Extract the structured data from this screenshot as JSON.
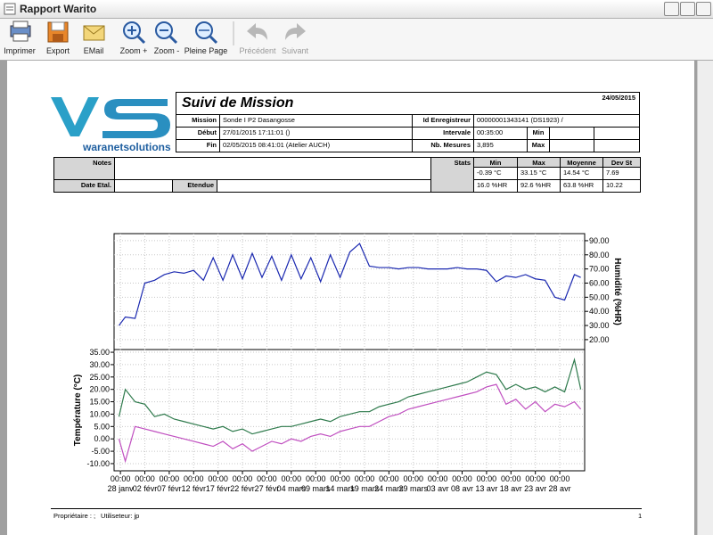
{
  "window": {
    "title": "Rapport Warito"
  },
  "toolbar": {
    "buttons": [
      "Imprimer",
      "Export",
      "EMail",
      "Zoom +",
      "Zoom -",
      "Pleine Page",
      "Précédent",
      "Suivant"
    ]
  },
  "report": {
    "logo": "waranetsolutions",
    "title": "Suivi de Mission",
    "date": "24/05/2015",
    "info": {
      "mission_label": "Mission",
      "mission": "Sonde I P2 Dasangosse",
      "debut_label": "Début",
      "debut": "27/01/2015  17:11:01 ()",
      "fin_label": "Fin",
      "fin": "02/05/2015  08:41:01 (Atelier AUCH)",
      "id_label": "Id Enregistreur",
      "id": "00000001343141 (DS1923) /",
      "intervale_label": "Intervale",
      "intervale": "00:35:00",
      "mesures_label": "Nb. Mesures",
      "mesures": "3,895",
      "min_label": "Min",
      "max_label": "Max"
    },
    "notes": {
      "notes_label": "Notes",
      "date_etal_label": "Date Etal.",
      "etendue_label": "Etendue"
    },
    "stats": {
      "label": "Stats",
      "headers": [
        "Min",
        "Max",
        "Moyenne",
        "Dev St"
      ],
      "rows": [
        [
          "-0.39 °C",
          "33.15 °C",
          "14.54 °C",
          "7.69"
        ],
        [
          "16.0 %HR",
          "92.6 %HR",
          "63.8 %HR",
          "10.22"
        ]
      ]
    },
    "footer": {
      "owner": "Propriétaire : ;",
      "user": "Utiliseteur: jp",
      "page": "1"
    }
  },
  "chart_data": {
    "type": "line",
    "ylabel": "Température (°C)",
    "y2label": "Humidité (%HR)",
    "x": [
      -0.3,
      1,
      3,
      5,
      7,
      9,
      11,
      13,
      15,
      17,
      19,
      21,
      23,
      25,
      27,
      29,
      31,
      33,
      35,
      37,
      39,
      41,
      43,
      45,
      47,
      49,
      51,
      53,
      55,
      57,
      59,
      61,
      63,
      65,
      67,
      69,
      71,
      73,
      75,
      77,
      79,
      81,
      83,
      85,
      87,
      89,
      91,
      93,
      94.3
    ],
    "xlim": [
      -1.3,
      95.1
    ],
    "xticks": [
      {
        "value": 0,
        "label": "28 janv"
      },
      {
        "value": 5,
        "label": "02 févr"
      },
      {
        "value": 10,
        "label": "07 févr"
      },
      {
        "value": 15,
        "label": "12 févr"
      },
      {
        "value": 20,
        "label": "17 févr"
      },
      {
        "value": 25,
        "label": "22 févr"
      },
      {
        "value": 30,
        "label": "27 févr"
      },
      {
        "value": 35,
        "label": "04 mars"
      },
      {
        "value": 40,
        "label": "09 mars"
      },
      {
        "value": 45,
        "label": "14 mars"
      },
      {
        "value": 50,
        "label": "19 mars"
      },
      {
        "value": 55,
        "label": "24 mars"
      },
      {
        "value": 60,
        "label": "29 mars"
      },
      {
        "value": 65,
        "label": "03 avr"
      },
      {
        "value": 70,
        "label": "08 avr"
      },
      {
        "value": 75,
        "label": "13 avr"
      },
      {
        "value": 80,
        "label": "18 avr"
      },
      {
        "value": 85,
        "label": "23 avr"
      },
      {
        "value": 90,
        "label": "28 avr"
      }
    ],
    "xtick_time": "00:00",
    "ylim": [
      -12.9,
      36.1
    ],
    "yticks": [
      {
        "value": 35,
        "label": "35.00"
      },
      {
        "value": 30,
        "label": "30.00"
      },
      {
        "value": 25,
        "label": "25.00"
      },
      {
        "value": 20,
        "label": "20.00"
      },
      {
        "value": 15,
        "label": "15.00"
      },
      {
        "value": 10,
        "label": "10.00"
      },
      {
        "value": 5,
        "label": "5.00"
      },
      {
        "value": 0,
        "label": "0.00"
      },
      {
        "value": -5,
        "label": "-5.00"
      },
      {
        "value": -10,
        "label": "-10.00"
      }
    ],
    "y2lim": [
      13,
      95
    ],
    "y2ticks": [
      {
        "value": 90,
        "label": "90.00"
      },
      {
        "value": 80,
        "label": "80.00"
      },
      {
        "value": 70,
        "label": "70.00"
      },
      {
        "value": 60,
        "label": "60.00"
      },
      {
        "value": 50,
        "label": "50.00"
      },
      {
        "value": 40,
        "label": "40.00"
      },
      {
        "value": 30,
        "label": "30.00"
      },
      {
        "value": 20,
        "label": "20.00"
      }
    ],
    "grid": true,
    "series": [
      {
        "color": "#1a28b0",
        "axis": "y2",
        "values": [
          30,
          36,
          35,
          60,
          62,
          66,
          68,
          67,
          69,
          62,
          78,
          62,
          80,
          63,
          81,
          64,
          79,
          62,
          80,
          63,
          78,
          61,
          80,
          64,
          82,
          88,
          72,
          71,
          71,
          70,
          71,
          71,
          70,
          70,
          70,
          71,
          70,
          70,
          69,
          61,
          65,
          64,
          66,
          63,
          62,
          50,
          48,
          66,
          64
        ]
      },
      {
        "color": "#2e7a4c",
        "values": [
          9,
          20,
          15,
          14,
          9,
          10,
          8,
          7,
          6,
          5,
          4,
          5,
          3,
          4,
          2,
          3,
          4,
          5,
          5,
          6,
          7,
          8,
          7,
          9,
          10,
          11,
          11,
          13,
          14,
          15,
          17,
          18,
          19,
          20,
          21,
          22,
          23,
          25,
          27,
          26,
          20,
          22,
          20,
          21,
          19,
          21,
          19,
          32,
          20
        ]
      },
      {
        "color": "#c04fc0",
        "values": [
          0,
          -9,
          5,
          4,
          3,
          2,
          1,
          0,
          -1,
          -2,
          -3,
          -1,
          -4,
          -2,
          -5,
          -3,
          -1,
          -2,
          0,
          -1,
          1,
          2,
          1,
          3,
          4,
          5,
          5,
          7,
          9,
          10,
          12,
          13,
          14,
          15,
          16,
          17,
          18,
          19,
          21,
          22,
          14,
          16,
          12,
          15,
          11,
          14,
          13,
          15,
          12
        ]
      }
    ]
  }
}
